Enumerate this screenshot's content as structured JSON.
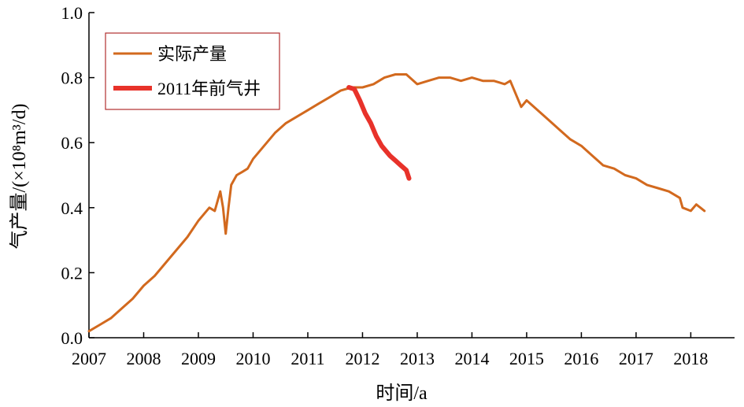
{
  "chart_data": {
    "type": "line",
    "xlabel": "时间/a",
    "ylabel": "气产量/(×10⁸m³/d)",
    "xlim": [
      2007,
      2018.8
    ],
    "ylim": [
      0,
      1.0
    ],
    "x_ticks": [
      2007,
      2008,
      2009,
      2010,
      2011,
      2012,
      2013,
      2014,
      2015,
      2016,
      2017,
      2018
    ],
    "y_ticks": [
      "0.0",
      "0.2",
      "0.4",
      "0.6",
      "0.8",
      "1.0"
    ],
    "grid": false,
    "legend_position": "top-left",
    "series": [
      {
        "name": "实际产量",
        "color": "#d2691e",
        "x": [
          2007.0,
          2007.2,
          2007.4,
          2007.6,
          2007.8,
          2008.0,
          2008.2,
          2008.4,
          2008.6,
          2008.8,
          2009.0,
          2009.2,
          2009.3,
          2009.4,
          2009.45,
          2009.5,
          2009.55,
          2009.6,
          2009.7,
          2009.8,
          2009.9,
          2010.0,
          2010.2,
          2010.4,
          2010.6,
          2010.8,
          2011.0,
          2011.2,
          2011.4,
          2011.6,
          2011.8,
          2012.0,
          2012.2,
          2012.4,
          2012.6,
          2012.8,
          2013.0,
          2013.2,
          2013.4,
          2013.6,
          2013.8,
          2014.0,
          2014.2,
          2014.4,
          2014.6,
          2014.7,
          2014.9,
          2015.0,
          2015.2,
          2015.4,
          2015.6,
          2015.8,
          2016.0,
          2016.2,
          2016.4,
          2016.6,
          2016.8,
          2017.0,
          2017.2,
          2017.4,
          2017.6,
          2017.8,
          2017.85,
          2018.0,
          2018.1,
          2018.25
        ],
        "values": [
          0.02,
          0.04,
          0.06,
          0.09,
          0.12,
          0.16,
          0.19,
          0.23,
          0.27,
          0.31,
          0.36,
          0.4,
          0.39,
          0.45,
          0.4,
          0.32,
          0.4,
          0.47,
          0.5,
          0.51,
          0.52,
          0.55,
          0.59,
          0.63,
          0.66,
          0.68,
          0.7,
          0.72,
          0.74,
          0.76,
          0.77,
          0.77,
          0.78,
          0.8,
          0.81,
          0.81,
          0.78,
          0.79,
          0.8,
          0.8,
          0.79,
          0.8,
          0.79,
          0.79,
          0.78,
          0.79,
          0.71,
          0.73,
          0.7,
          0.67,
          0.64,
          0.61,
          0.59,
          0.56,
          0.53,
          0.52,
          0.5,
          0.49,
          0.47,
          0.46,
          0.45,
          0.43,
          0.4,
          0.39,
          0.41,
          0.39
        ]
      },
      {
        "name": "2011年前气井",
        "color": "#e8322a",
        "x": [
          2011.75,
          2011.85,
          2011.95,
          2012.05,
          2012.15,
          2012.25,
          2012.35,
          2012.5,
          2012.6,
          2012.7,
          2012.8,
          2012.85
        ],
        "values": [
          0.77,
          0.765,
          0.73,
          0.69,
          0.66,
          0.62,
          0.59,
          0.56,
          0.545,
          0.53,
          0.515,
          0.49
        ]
      }
    ]
  }
}
